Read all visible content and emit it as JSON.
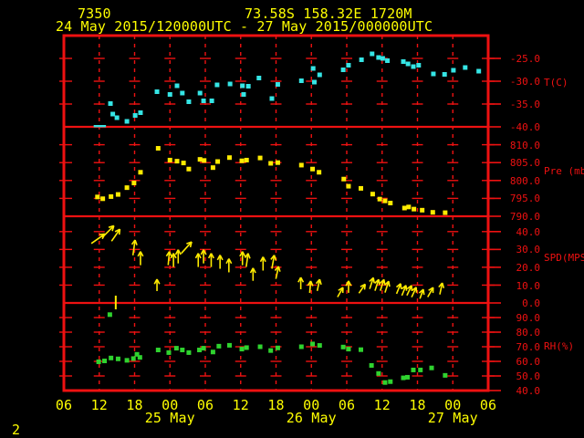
{
  "header": {
    "station_id": "7350",
    "location": "73.58S 158.32E 1720M",
    "time_range": "24 May 2015/120000UTC - 27 May 2015/000000UTC"
  },
  "footer": {
    "page_number": "2"
  },
  "colors": {
    "background": "#000000",
    "frame": "#ee1111",
    "text_primary": "#ffff00",
    "temp_series": "#35e5e5",
    "pressure_series": "#ffeb00",
    "wind_series": "#ffeb00",
    "humidity_series": "#2fd32f"
  },
  "x_axis": {
    "start": "24 May 2015 0600UTC",
    "end": "27 May 2015 0600UTC",
    "tick_interval_hours": 6,
    "hour_labels": [
      "06",
      "12",
      "18",
      "00",
      "06",
      "12",
      "18",
      "00",
      "06",
      "12",
      "18",
      "00",
      "06"
    ],
    "date_labels": [
      {
        "label": "25 May",
        "hour": 18
      },
      {
        "label": "26 May",
        "hour": 42
      },
      {
        "label": "27 May",
        "hour": 66
      }
    ]
  },
  "chart_data": [
    {
      "type": "scatter",
      "name": "temperature",
      "ylabel": "T(C)",
      "unit_label_y": 90,
      "yticks": [
        -25.0,
        -30.0,
        -35.0,
        -40.0
      ],
      "ylim": [
        -20,
        -40
      ],
      "marker": "square",
      "flat_points": [
        [
          5.6,
          -39.8
        ],
        [
          6.6,
          -39.8
        ]
      ],
      "points": [
        [
          7.9,
          -34.9
        ],
        [
          8.3,
          -37.2
        ],
        [
          9.0,
          -38.0
        ],
        [
          10.7,
          -38.8
        ],
        [
          12.1,
          -37.5
        ],
        [
          13.0,
          -36.9
        ],
        [
          15.8,
          -32.3
        ],
        [
          18.0,
          -32.9
        ],
        [
          19.2,
          -31.0
        ],
        [
          20.1,
          -32.6
        ],
        [
          21.2,
          -34.5
        ],
        [
          23.1,
          -32.6
        ],
        [
          23.7,
          -34.3
        ],
        [
          25.1,
          -34.3
        ],
        [
          26.0,
          -30.8
        ],
        [
          28.2,
          -30.6
        ],
        [
          30.3,
          -31.0
        ],
        [
          30.5,
          -32.9
        ],
        [
          31.3,
          -31.1
        ],
        [
          33.1,
          -29.3
        ],
        [
          35.3,
          -33.8
        ],
        [
          36.3,
          -30.7
        ],
        [
          40.3,
          -29.9
        ],
        [
          42.3,
          -27.2
        ],
        [
          42.5,
          -30.2
        ],
        [
          43.4,
          -28.6
        ],
        [
          47.4,
          -27.5
        ],
        [
          48.3,
          -26.5
        ],
        [
          50.5,
          -25.3
        ],
        [
          52.3,
          -24.0
        ],
        [
          53.4,
          -24.8
        ],
        [
          54.1,
          -25.0
        ],
        [
          54.9,
          -25.5
        ],
        [
          57.6,
          -25.7
        ],
        [
          58.4,
          -26.2
        ],
        [
          59.3,
          -26.8
        ],
        [
          60.2,
          -26.5
        ],
        [
          62.7,
          -28.4
        ],
        [
          64.6,
          -28.5
        ],
        [
          66.1,
          -27.6
        ],
        [
          68.1,
          -27.0
        ],
        [
          70.4,
          -27.8
        ]
      ]
    },
    {
      "type": "scatter",
      "name": "pressure",
      "ylabel": "Pre (mb)",
      "unit_label_y": 187,
      "yticks": [
        810.0,
        805.0,
        800.0,
        795.0,
        790.0
      ],
      "ylim": [
        815,
        790
      ],
      "marker": "square",
      "points": [
        [
          5.7,
          795.4
        ],
        [
          6.6,
          794.9
        ],
        [
          8.0,
          795.5
        ],
        [
          9.2,
          796.1
        ],
        [
          10.7,
          798.0
        ],
        [
          11.9,
          799.3
        ],
        [
          13.0,
          802.3
        ],
        [
          16.0,
          809.0
        ],
        [
          18.0,
          805.7
        ],
        [
          19.2,
          805.4
        ],
        [
          20.3,
          804.9
        ],
        [
          21.2,
          803.2
        ],
        [
          23.1,
          805.9
        ],
        [
          23.8,
          805.6
        ],
        [
          25.3,
          803.6
        ],
        [
          26.1,
          805.3
        ],
        [
          28.1,
          806.4
        ],
        [
          30.2,
          805.5
        ],
        [
          31.0,
          805.7
        ],
        [
          33.3,
          806.3
        ],
        [
          35.1,
          804.8
        ],
        [
          36.3,
          805.0
        ],
        [
          40.3,
          804.3
        ],
        [
          42.2,
          803.2
        ],
        [
          43.3,
          802.3
        ],
        [
          47.5,
          800.4
        ],
        [
          48.3,
          798.4
        ],
        [
          50.4,
          797.8
        ],
        [
          52.4,
          796.2
        ],
        [
          53.6,
          794.8
        ],
        [
          54.5,
          794.3
        ],
        [
          55.4,
          793.7
        ],
        [
          57.8,
          792.3
        ],
        [
          58.5,
          792.6
        ],
        [
          59.4,
          792.0
        ],
        [
          60.8,
          791.7
        ],
        [
          62.6,
          791.1
        ],
        [
          64.7,
          791.0
        ]
      ]
    },
    {
      "type": "vector",
      "name": "wind_speed",
      "ylabel": "SPD(MPS)",
      "unit_label_y": 282,
      "yticks": [
        40.0,
        30.0,
        20.0,
        10.0,
        0.0
      ],
      "ylim": [
        48.6,
        0
      ],
      "marker": "arrow",
      "arrow_note": "each entry is [hour, speed_mps, direction_deg_cw_from_up, arrow_len_px]",
      "calm_marker_hour": 8.8,
      "points": [
        [
          5.8,
          36,
          55,
          18
        ],
        [
          7.5,
          40,
          45,
          18
        ],
        [
          8.8,
          38,
          35,
          16
        ],
        [
          11.9,
          31,
          8,
          17
        ],
        [
          13.0,
          25,
          0,
          15
        ],
        [
          15.8,
          10,
          0,
          13
        ],
        [
          17.8,
          25,
          5,
          15
        ],
        [
          18.6,
          24,
          0,
          15
        ],
        [
          19.4,
          26,
          0,
          15
        ],
        [
          20.8,
          31,
          42,
          17
        ],
        [
          22.8,
          24,
          0,
          15
        ],
        [
          23.7,
          26,
          0,
          15
        ],
        [
          25.0,
          24,
          0,
          15
        ],
        [
          26.5,
          23,
          0,
          15
        ],
        [
          28.0,
          21,
          0,
          15
        ],
        [
          30.3,
          25,
          0,
          15
        ],
        [
          31.1,
          24,
          8,
          15
        ],
        [
          32.1,
          16,
          0,
          14
        ],
        [
          33.8,
          22,
          0,
          15
        ],
        [
          35.5,
          23,
          10,
          15
        ],
        [
          36.2,
          17,
          12,
          14
        ],
        [
          40.2,
          11,
          0,
          13
        ],
        [
          41.8,
          9,
          5,
          13
        ],
        [
          43.2,
          10,
          12,
          13
        ],
        [
          46.9,
          6,
          30,
          12
        ],
        [
          48.3,
          9,
          0,
          13
        ],
        [
          50.6,
          8,
          35,
          12
        ],
        [
          52.2,
          11,
          18,
          13
        ],
        [
          53.1,
          10,
          18,
          13
        ],
        [
          54.0,
          10,
          18,
          13
        ],
        [
          54.8,
          9,
          18,
          13
        ],
        [
          56.8,
          8,
          22,
          12
        ],
        [
          57.7,
          7,
          22,
          12
        ],
        [
          58.6,
          7,
          25,
          12
        ],
        [
          59.4,
          6,
          25,
          12
        ],
        [
          60.7,
          5,
          20,
          11
        ],
        [
          62.2,
          6,
          30,
          12
        ],
        [
          64.0,
          8,
          12,
          13
        ]
      ]
    },
    {
      "type": "scatter",
      "name": "relative_humidity",
      "ylabel": "RH(%)",
      "unit_label_y": 379,
      "yticks": [
        90.0,
        80.0,
        70.0,
        60.0,
        50.0,
        40.0
      ],
      "ylim": [
        100,
        40
      ],
      "marker": "square",
      "points": [
        [
          5.9,
          59.7
        ],
        [
          6.9,
          60.3
        ],
        [
          7.8,
          92.0
        ],
        [
          8.0,
          62.3
        ],
        [
          9.2,
          61.7
        ],
        [
          10.7,
          60.7
        ],
        [
          11.8,
          61.9
        ],
        [
          12.4,
          64.8
        ],
        [
          12.9,
          62.7
        ],
        [
          16.0,
          67.8
        ],
        [
          17.8,
          66.0
        ],
        [
          19.1,
          69.0
        ],
        [
          20.1,
          67.8
        ],
        [
          21.2,
          66.0
        ],
        [
          23.0,
          67.8
        ],
        [
          23.7,
          69.0
        ],
        [
          25.3,
          66.4
        ],
        [
          26.3,
          70.4
        ],
        [
          28.1,
          71.0
        ],
        [
          30.2,
          68.4
        ],
        [
          31.0,
          69.4
        ],
        [
          33.3,
          70.0
        ],
        [
          35.1,
          67.4
        ],
        [
          36.3,
          69.2
        ],
        [
          40.3,
          70.0
        ],
        [
          42.2,
          71.9
        ],
        [
          43.4,
          70.9
        ],
        [
          47.4,
          69.8
        ],
        [
          48.3,
          68.4
        ],
        [
          50.4,
          68.0
        ],
        [
          52.2,
          57.2
        ],
        [
          53.4,
          51.7
        ],
        [
          54.5,
          45.5
        ],
        [
          55.4,
          46.1
        ],
        [
          57.6,
          48.7
        ],
        [
          58.3,
          49.1
        ],
        [
          59.3,
          54.1
        ],
        [
          60.5,
          54.1
        ],
        [
          62.4,
          55.5
        ],
        [
          64.7,
          50.4
        ]
      ]
    }
  ]
}
